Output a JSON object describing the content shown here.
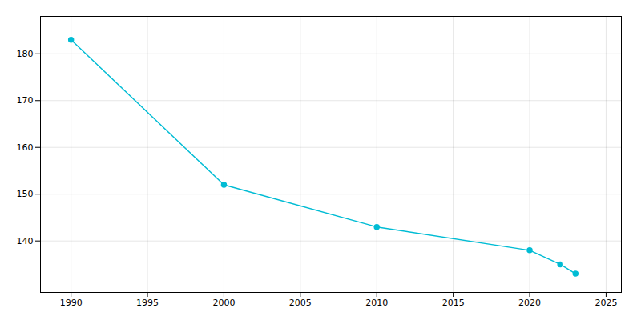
{
  "chart_data": {
    "type": "line",
    "x": [
      1990,
      2000,
      2010,
      2020,
      2022,
      2023
    ],
    "values": [
      183,
      152,
      143,
      138,
      135,
      133
    ],
    "color": "#00BCD4",
    "marker": "circle",
    "xlim": [
      1988,
      2026
    ],
    "ylim": [
      129,
      188
    ],
    "xticks": [
      1990,
      1995,
      2000,
      2005,
      2010,
      2015,
      2020,
      2025
    ],
    "yticks": [
      140,
      150,
      160,
      170,
      180
    ],
    "grid": true
  }
}
